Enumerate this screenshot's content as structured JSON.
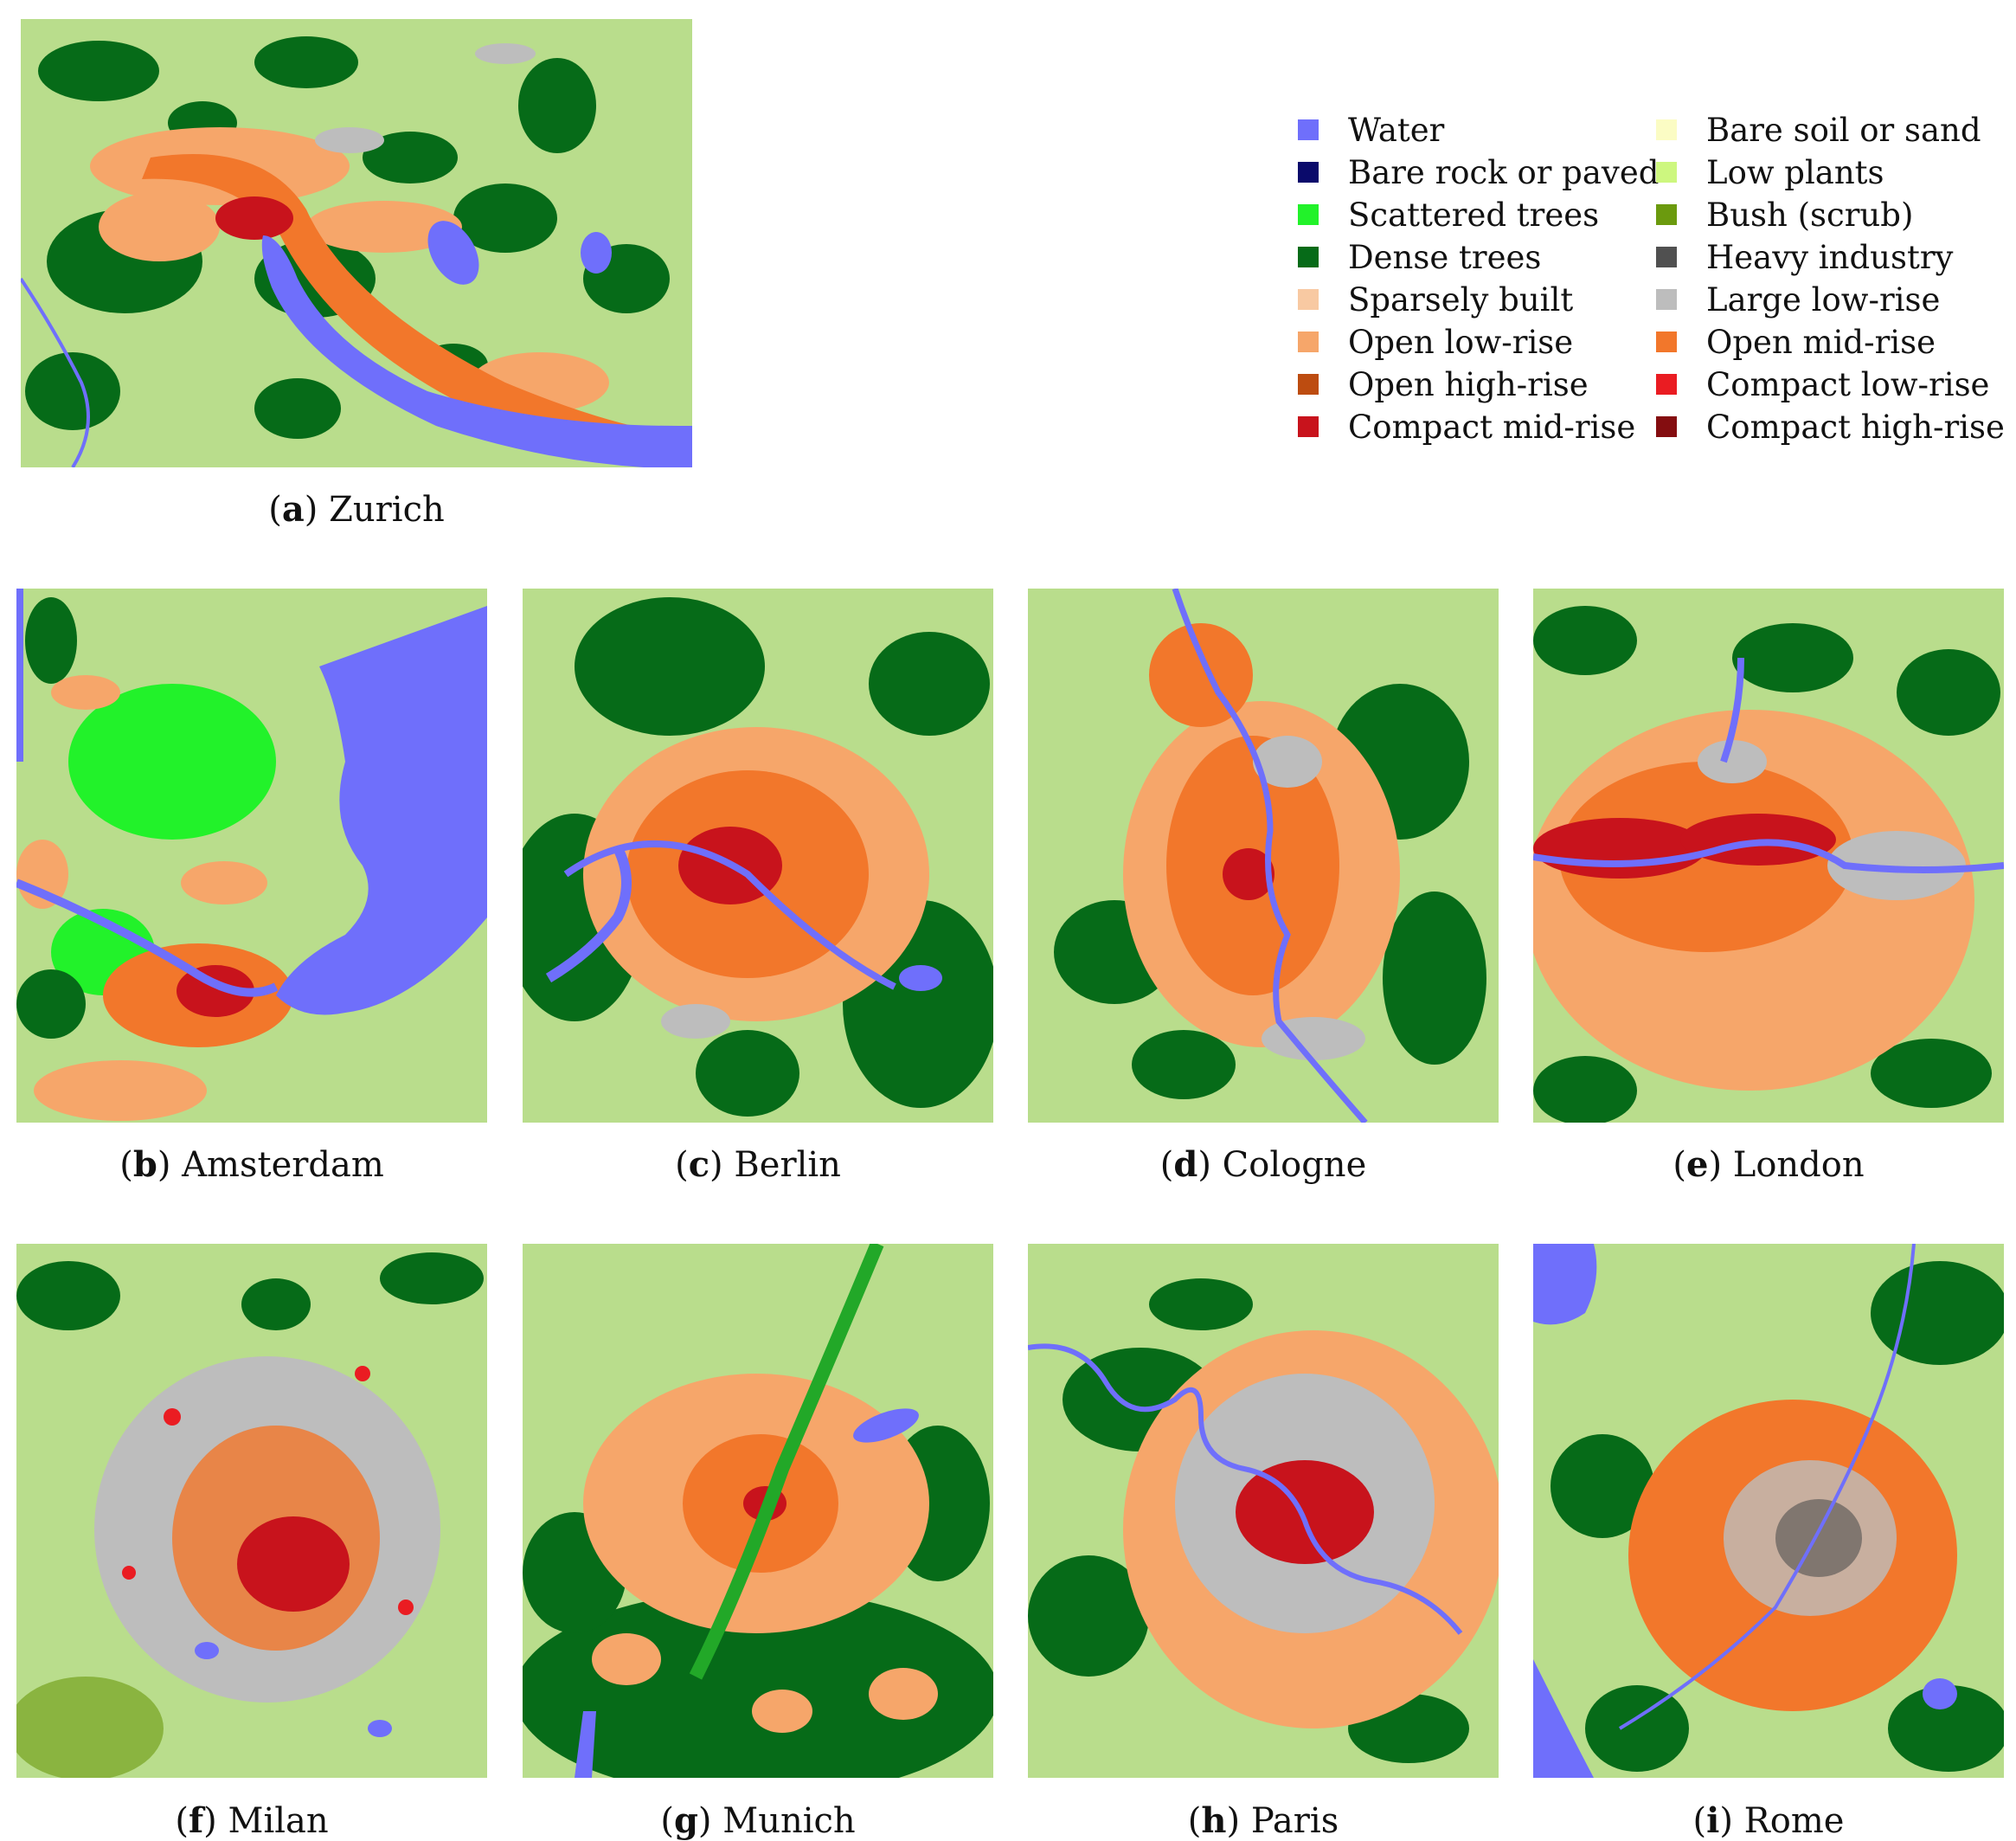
{
  "legend": [
    {
      "label": "Water",
      "color": "#6f6ffb"
    },
    {
      "label": "Bare soil or sand",
      "color": "#fbfcc4"
    },
    {
      "label": "Bare rock or paved",
      "color": "#0a0a6b"
    },
    {
      "label": "Low plants",
      "color": "#cdf77f"
    },
    {
      "label": "Scattered trees",
      "color": "#22f22a"
    },
    {
      "label": "Bush (scrub)",
      "color": "#6b9a0e"
    },
    {
      "label": "Dense trees",
      "color": "#066b18"
    },
    {
      "label": "Heavy industry",
      "color": "#505050"
    },
    {
      "label": "Sparsely built",
      "color": "#f8c9a2"
    },
    {
      "label": "Large low-rise",
      "color": "#bdbdbd"
    },
    {
      "label": "Open low-rise",
      "color": "#f6a66a"
    },
    {
      "label": "Open mid-rise",
      "color": "#f2772b"
    },
    {
      "label": "Open high-rise",
      "color": "#bd4c10"
    },
    {
      "label": "Compact low-rise",
      "color": "#ea1c22"
    },
    {
      "label": "Compact mid-rise",
      "color": "#c8131c"
    },
    {
      "label": "Compact high-rise",
      "color": "#840d10"
    }
  ],
  "panels": [
    {
      "letter": "a",
      "city": "Zurich"
    },
    {
      "letter": "b",
      "city": "Amsterdam"
    },
    {
      "letter": "c",
      "city": "Berlin"
    },
    {
      "letter": "d",
      "city": "Cologne"
    },
    {
      "letter": "e",
      "city": "London"
    },
    {
      "letter": "f",
      "city": "Milan"
    },
    {
      "letter": "g",
      "city": "Munich"
    },
    {
      "letter": "h",
      "city": "Paris"
    },
    {
      "letter": "i",
      "city": "Rome"
    }
  ]
}
